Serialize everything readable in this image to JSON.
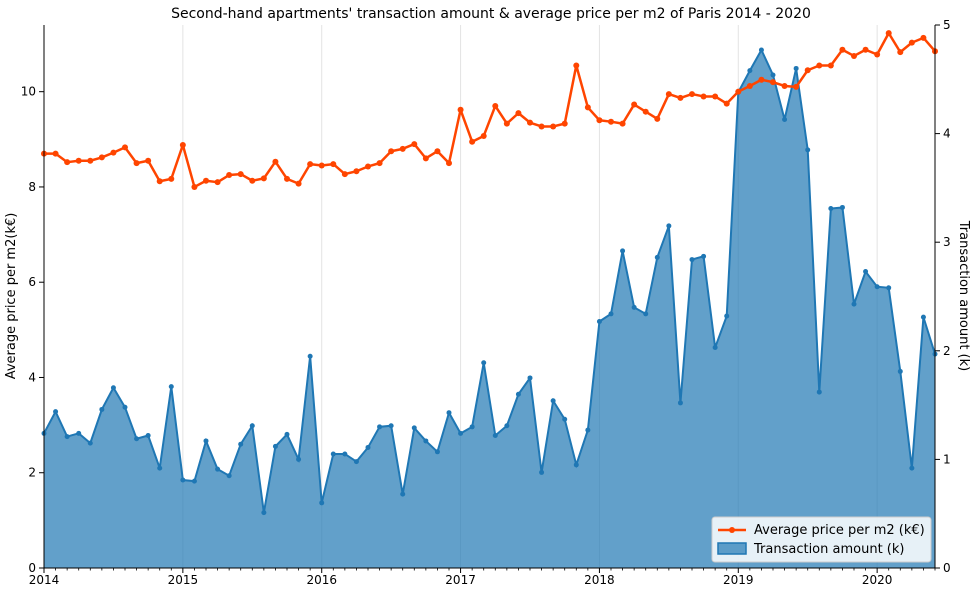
{
  "chart_data": {
    "type": "line",
    "title": "Second-hand apartments' transaction amount & average price per m2 of Paris 2014 - 2020",
    "xlabel": "",
    "ylabel_left": "Average price per m2(k€)",
    "ylabel_right": "Transaction amount (k)",
    "xlim": [
      "2014-01",
      "2020-06"
    ],
    "ylim_left": [
      0,
      11.4
    ],
    "ylim_right": [
      0,
      5.0
    ],
    "x_ticks": [
      "2014",
      "2015",
      "2016",
      "2017",
      "2018",
      "2019",
      "2020"
    ],
    "y_left_ticks": [
      "0",
      "2",
      "4",
      "6",
      "8",
      "10"
    ],
    "y_right_ticks": [
      "0",
      "1",
      "2",
      "3",
      "4",
      "5"
    ],
    "grid": "vertical, yearly",
    "legend_position": "bottom-right",
    "x": [
      "2014-01",
      "2014-02",
      "2014-03",
      "2014-04",
      "2014-05",
      "2014-06",
      "2014-07",
      "2014-08",
      "2014-09",
      "2014-10",
      "2014-11",
      "2014-12",
      "2015-01",
      "2015-02",
      "2015-03",
      "2015-04",
      "2015-05",
      "2015-06",
      "2015-07",
      "2015-08",
      "2015-09",
      "2015-10",
      "2015-11",
      "2015-12",
      "2016-01",
      "2016-02",
      "2016-03",
      "2016-04",
      "2016-05",
      "2016-06",
      "2016-07",
      "2016-08",
      "2016-09",
      "2016-10",
      "2016-11",
      "2016-12",
      "2017-01",
      "2017-02",
      "2017-03",
      "2017-04",
      "2017-05",
      "2017-06",
      "2017-07",
      "2017-08",
      "2017-09",
      "2017-10",
      "2017-11",
      "2017-12",
      "2018-01",
      "2018-02",
      "2018-03",
      "2018-04",
      "2018-05",
      "2018-06",
      "2018-07",
      "2018-08",
      "2018-09",
      "2018-10",
      "2018-11",
      "2018-12",
      "2019-01",
      "2019-02",
      "2019-03",
      "2019-04",
      "2019-05",
      "2019-06",
      "2019-07",
      "2019-08",
      "2019-09",
      "2019-10",
      "2019-11",
      "2019-12",
      "2020-01",
      "2020-02",
      "2020-03",
      "2020-04",
      "2020-05",
      "2020-06"
    ],
    "series": [
      {
        "name": "Average price per m2 (k€)",
        "axis": "left",
        "color": "#ff4500",
        "values": [
          8.7,
          8.7,
          8.52,
          8.55,
          8.55,
          8.62,
          8.72,
          8.83,
          8.5,
          8.55,
          8.12,
          8.17,
          8.88,
          8.0,
          8.13,
          8.1,
          8.25,
          8.27,
          8.13,
          8.18,
          8.53,
          8.17,
          8.07,
          8.48,
          8.45,
          8.48,
          8.27,
          8.33,
          8.43,
          8.5,
          8.75,
          8.8,
          8.9,
          8.6,
          8.75,
          8.5,
          9.62,
          8.95,
          9.07,
          9.7,
          9.33,
          9.55,
          9.35,
          9.27,
          9.27,
          9.33,
          10.55,
          9.67,
          9.4,
          9.37,
          9.33,
          9.73,
          9.58,
          9.43,
          9.95,
          9.87,
          9.95,
          9.9,
          9.9,
          9.75,
          10.0,
          10.12,
          10.25,
          10.2,
          10.12,
          10.1,
          10.45,
          10.55,
          10.55,
          10.88,
          10.75,
          10.88,
          10.78,
          11.23,
          10.83,
          11.03,
          11.13,
          10.85
        ]
      },
      {
        "name": "Transaction amount (k)",
        "axis": "right",
        "color": "#1f77b4",
        "values": [
          1.24,
          1.44,
          1.21,
          1.24,
          1.15,
          1.46,
          1.66,
          1.48,
          1.19,
          1.22,
          0.92,
          1.67,
          0.81,
          0.8,
          1.17,
          0.91,
          0.85,
          1.14,
          1.31,
          0.51,
          1.12,
          1.23,
          1.0,
          1.95,
          0.6,
          1.05,
          1.05,
          0.98,
          1.11,
          1.3,
          1.31,
          0.68,
          1.29,
          1.17,
          1.07,
          1.43,
          1.24,
          1.3,
          1.89,
          1.22,
          1.31,
          1.6,
          1.75,
          0.88,
          1.54,
          1.37,
          0.95,
          1.27,
          2.27,
          2.34,
          2.92,
          2.4,
          2.34,
          2.86,
          3.15,
          1.52,
          2.84,
          2.87,
          2.03,
          2.32,
          4.38,
          4.58,
          4.77,
          4.54,
          4.13,
          4.6,
          3.85,
          1.62,
          3.31,
          3.32,
          2.43,
          2.73,
          2.59,
          2.58,
          1.81,
          0.92,
          2.31,
          1.97
        ]
      }
    ]
  }
}
